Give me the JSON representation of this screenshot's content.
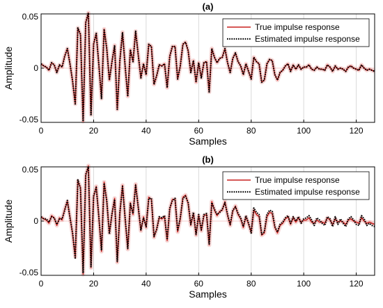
{
  "chart_data": [
    {
      "type": "line",
      "title": "(a)",
      "xlabel": "Samples",
      "ylabel": "Amplitude",
      "xlim": [
        0,
        127
      ],
      "ylim": [
        -0.05,
        0.05
      ],
      "xticks": [
        "0",
        "20",
        "40",
        "60",
        "80",
        "100",
        "120"
      ],
      "yticks": [
        "-0.05",
        "0",
        "0.05"
      ],
      "grid": true,
      "legend_position": "top-right",
      "colors": {
        "true": "#c8201e",
        "estimated": "#000000",
        "grid": "#d9d9d9",
        "zero": "#f4cccc"
      },
      "x": [
        0,
        1,
        2,
        3,
        4,
        5,
        6,
        7,
        8,
        9,
        10,
        11,
        12,
        13,
        14,
        15,
        16,
        17,
        18,
        19,
        20,
        21,
        22,
        23,
        24,
        25,
        26,
        27,
        28,
        29,
        30,
        31,
        32,
        33,
        34,
        35,
        36,
        37,
        38,
        39,
        40,
        41,
        42,
        43,
        44,
        45,
        46,
        47,
        48,
        49,
        50,
        51,
        52,
        53,
        54,
        55,
        56,
        57,
        58,
        59,
        60,
        61,
        62,
        63,
        64,
        65,
        66,
        67,
        68,
        69,
        70,
        71,
        72,
        73,
        74,
        75,
        76,
        77,
        78,
        79,
        80,
        81,
        82,
        83,
        84,
        85,
        86,
        87,
        88,
        89,
        90,
        91,
        92,
        93,
        94,
        95,
        96,
        97,
        98,
        99,
        100,
        101,
        102,
        103,
        104,
        105,
        106,
        107,
        108,
        109,
        110,
        111,
        112,
        113,
        114,
        115,
        116,
        117,
        118,
        119,
        120,
        121,
        122,
        123,
        124,
        125,
        126,
        127
      ],
      "series": [
        {
          "name": "True impulse response",
          "values": [
            0.004,
            0.002,
            0.001,
            -0.002,
            0.005,
            0.003,
            -0.004,
            0.003,
            0.001,
            0.011,
            0.018,
            0.004,
            -0.012,
            -0.033,
            0.037,
            0.031,
            -0.049,
            0.042,
            0.051,
            -0.043,
            0.022,
            0.032,
            0.003,
            -0.028,
            0.036,
            0.018,
            -0.011,
            0.006,
            0.021,
            -0.038,
            0.007,
            0.033,
            0.002,
            -0.026,
            0.017,
            0.006,
            0.034,
            0.012,
            -0.009,
            0.004,
            -0.006,
            0.022,
            0.02,
            -0.015,
            -0.007,
            0.003,
            0.002,
            0.004,
            -0.018,
            0.011,
            0.02,
            0.02,
            -0.01,
            0.002,
            0.022,
            0.024,
            0.016,
            -0.004,
            0.007,
            -0.013,
            0.005,
            -0.009,
            0.005,
            0.006,
            -0.022,
            0.018,
            0.01,
            0.005,
            0.009,
            0.01,
            0.018,
            0.005,
            -0.004,
            0.009,
            0.014,
            0.006,
            0.002,
            -0.006,
            0.004,
            -0.003,
            -0.01,
            0.01,
            0.006,
            0.004,
            -0.013,
            -0.011,
            0.004,
            0.008,
            0.007,
            -0.006,
            -0.011,
            -0.004,
            -0.002,
            0.002,
            0.004,
            -0.003,
            0.003,
            -0.001,
            0.003,
            -0.001,
            0.001,
            0.001,
            0.003,
            -0.001,
            -0.002,
            0.001,
            -0.001,
            -0.001,
            -0.002,
            0.003,
            0.001,
            -0.003,
            0.002,
            -0.001,
            0,
            -0.001,
            -0.003,
            0.001,
            0.002,
            0,
            -0.001,
            -0.002,
            0.003,
            0,
            -0.002,
            -0.001,
            -0.002,
            -0.003
          ]
        },
        {
          "name": "Estimated impulse response",
          "values": [
            0.004,
            0.002,
            0.001,
            -0.002,
            0.005,
            0.003,
            -0.004,
            0.003,
            0.001,
            0.011,
            0.018,
            0.004,
            -0.012,
            -0.033,
            0.037,
            0.031,
            -0.049,
            0.042,
            0.051,
            -0.043,
            0.022,
            0.032,
            0.003,
            -0.028,
            0.036,
            0.018,
            -0.011,
            0.006,
            0.021,
            -0.038,
            0.007,
            0.033,
            0.002,
            -0.026,
            0.017,
            0.006,
            0.034,
            0.012,
            -0.009,
            0.004,
            -0.006,
            0.022,
            0.02,
            -0.015,
            -0.007,
            0.003,
            0.002,
            0.004,
            -0.018,
            0.011,
            0.02,
            0.02,
            -0.01,
            0.002,
            0.022,
            0.024,
            0.016,
            -0.004,
            0.007,
            -0.013,
            0.005,
            -0.009,
            0.005,
            0.006,
            -0.022,
            0.018,
            0.01,
            0.005,
            0.009,
            0.01,
            0.018,
            0.005,
            -0.004,
            0.009,
            0.014,
            0.006,
            0.002,
            -0.006,
            0.004,
            -0.003,
            -0.01,
            0.01,
            0.006,
            0.004,
            -0.013,
            -0.011,
            0.004,
            0.008,
            0.007,
            -0.006,
            -0.011,
            -0.004,
            -0.002,
            0.002,
            0.004,
            -0.003,
            0.003,
            -0.001,
            0.003,
            -0.001,
            0.001,
            0.001,
            0.003,
            -0.001,
            -0.002,
            0.001,
            -0.001,
            -0.001,
            -0.002,
            0.003,
            0.001,
            -0.003,
            0.002,
            -0.001,
            0,
            -0.001,
            -0.003,
            0.001,
            0.002,
            0,
            -0.001,
            -0.002,
            0.003,
            0,
            -0.002,
            -0.001,
            -0.002,
            -0.003
          ]
        }
      ]
    },
    {
      "type": "line",
      "title": "(b)",
      "xlabel": "Samples",
      "ylabel": "Amplitude",
      "xlim": [
        0,
        127
      ],
      "ylim": [
        -0.05,
        0.05
      ],
      "xticks": [
        "0",
        "20",
        "40",
        "60",
        "80",
        "100",
        "120"
      ],
      "yticks": [
        "-0.05",
        "0",
        "0.05"
      ],
      "grid": true,
      "legend_position": "top-right",
      "colors": {
        "true": "#c8201e",
        "estimated": "#000000",
        "grid": "#d9d9d9",
        "zero": "#f4cccc"
      },
      "x": [
        0,
        1,
        2,
        3,
        4,
        5,
        6,
        7,
        8,
        9,
        10,
        11,
        12,
        13,
        14,
        15,
        16,
        17,
        18,
        19,
        20,
        21,
        22,
        23,
        24,
        25,
        26,
        27,
        28,
        29,
        30,
        31,
        32,
        33,
        34,
        35,
        36,
        37,
        38,
        39,
        40,
        41,
        42,
        43,
        44,
        45,
        46,
        47,
        48,
        49,
        50,
        51,
        52,
        53,
        54,
        55,
        56,
        57,
        58,
        59,
        60,
        61,
        62,
        63,
        64,
        65,
        66,
        67,
        68,
        69,
        70,
        71,
        72,
        73,
        74,
        75,
        76,
        77,
        78,
        79,
        80,
        81,
        82,
        83,
        84,
        85,
        86,
        87,
        88,
        89,
        90,
        91,
        92,
        93,
        94,
        95,
        96,
        97,
        98,
        99,
        100,
        101,
        102,
        103,
        104,
        105,
        106,
        107,
        108,
        109,
        110,
        111,
        112,
        113,
        114,
        115,
        116,
        117,
        118,
        119,
        120,
        121,
        122,
        123,
        124,
        125,
        126,
        127
      ],
      "series": [
        {
          "name": "True impulse response",
          "values": [
            0.004,
            0.002,
            0.001,
            -0.002,
            0.005,
            0.003,
            -0.004,
            0.003,
            0.001,
            0.011,
            0.018,
            0.004,
            -0.012,
            -0.033,
            0.037,
            0.031,
            -0.049,
            0.042,
            0.051,
            -0.043,
            0.022,
            0.032,
            0.003,
            -0.028,
            0.036,
            0.018,
            -0.011,
            0.006,
            0.021,
            -0.038,
            0.007,
            0.033,
            0.002,
            -0.026,
            0.017,
            0.006,
            0.034,
            0.012,
            -0.009,
            0.004,
            -0.006,
            0.022,
            0.02,
            -0.015,
            -0.007,
            0.003,
            0.002,
            0.004,
            -0.018,
            0.011,
            0.02,
            0.02,
            -0.01,
            0.002,
            0.022,
            0.024,
            0.016,
            -0.004,
            0.007,
            -0.013,
            0.005,
            -0.009,
            0.005,
            0.006,
            -0.022,
            0.018,
            0.01,
            0.005,
            0.009,
            0.01,
            0.018,
            0.005,
            -0.004,
            0.009,
            0.014,
            0.006,
            0.002,
            -0.006,
            0.004,
            -0.003,
            -0.01,
            0.01,
            0.006,
            0.004,
            -0.013,
            -0.011,
            0.004,
            0.008,
            0.007,
            -0.006,
            -0.011,
            -0.004,
            -0.002,
            0.002,
            0.004,
            -0.003,
            0.003,
            -0.001,
            0.003,
            -0.001,
            0.001,
            0.001,
            0.003,
            -0.001,
            -0.002,
            0.001,
            -0.001,
            -0.001,
            -0.002,
            0.003,
            0.001,
            -0.003,
            0.002,
            -0.001,
            0,
            -0.001,
            -0.003,
            0.001,
            0.002,
            0,
            -0.001,
            -0.002,
            0.003,
            0,
            -0.002,
            -0.001,
            -0.002,
            -0.003
          ]
        },
        {
          "name": "Estimated impulse response",
          "values": [
            0.004,
            0.002,
            0.002,
            -0.001,
            0.004,
            0.003,
            -0.003,
            0.002,
            0.002,
            0.01,
            0.019,
            0.003,
            -0.011,
            -0.034,
            0.038,
            0.03,
            -0.048,
            0.043,
            0.05,
            -0.042,
            0.023,
            0.031,
            0.004,
            -0.027,
            0.035,
            0.019,
            -0.012,
            0.007,
            0.02,
            -0.037,
            0.008,
            0.032,
            0.003,
            -0.025,
            0.016,
            0.007,
            0.033,
            0.013,
            -0.008,
            0.003,
            -0.005,
            0.021,
            0.021,
            -0.014,
            -0.008,
            0.004,
            0.003,
            0.005,
            -0.017,
            0.012,
            0.019,
            0.021,
            -0.009,
            0.003,
            0.021,
            0.023,
            0.017,
            -0.003,
            0.008,
            -0.012,
            0.006,
            -0.008,
            0.006,
            0.007,
            -0.021,
            0.017,
            0.011,
            0.006,
            0.008,
            0.011,
            0.017,
            0.006,
            -0.003,
            0.01,
            0.013,
            0.007,
            0.003,
            -0.005,
            0.005,
            -0.002,
            -0.011,
            0.012,
            0.008,
            0.006,
            -0.012,
            -0.01,
            0.006,
            0.01,
            0.009,
            -0.005,
            -0.01,
            -0.003,
            -0.001,
            0.003,
            0.005,
            -0.002,
            0.004,
            0,
            0.004,
            -0.002,
            0.002,
            0.003,
            0.005,
            0.001,
            -0.004,
            0.003,
            0.001,
            -0.002,
            -0.004,
            0.004,
            0.002,
            -0.005,
            0.004,
            -0.003,
            0.002,
            -0.002,
            -0.005,
            0.002,
            0.004,
            0.001,
            -0.003,
            -0.004,
            0.005,
            0.002,
            -0.004,
            -0.002,
            -0.004,
            -0.005
          ]
        }
      ]
    }
  ]
}
